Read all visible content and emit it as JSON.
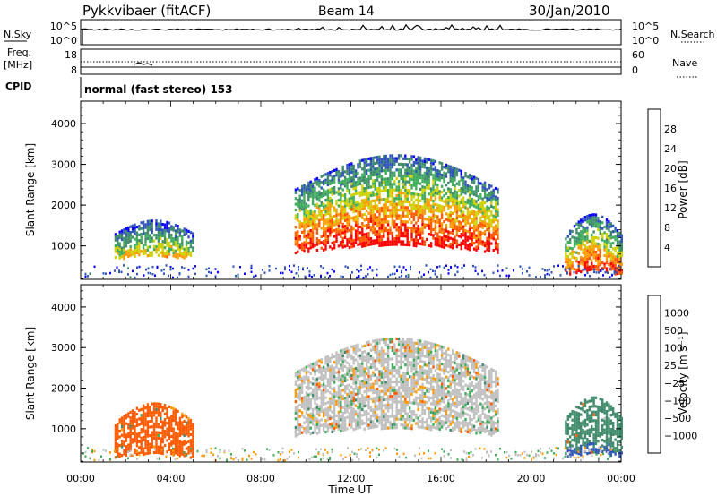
{
  "header": {
    "title": "Pykkvibaer (fitACF)",
    "beam": "Beam 14",
    "date": "30/Jan/2010"
  },
  "strips": {
    "nsky_label": "N.Sky",
    "nsearch_label": "N.Search",
    "nsky_ticks": [
      "10^5",
      "10^0"
    ],
    "nsearch_ticks": [
      "10^5",
      "10^0"
    ],
    "freq_label": "Freq.",
    "freq_unit": "[MHz]",
    "freq_ticks": [
      "18",
      "8"
    ],
    "nave_label": "Nave",
    "nave_ticks": [
      "60",
      "0"
    ],
    "cpid_label": "CPID",
    "cpid_text": "normal (fast stereo) 153"
  },
  "colors": {
    "power_scale": [
      "#0a00ff",
      "#2f55b7",
      "#3f8a6a",
      "#3fae5a",
      "#cfd000",
      "#ff9a00",
      "#ff5a00",
      "#ff0000"
    ],
    "velocity_scale": [
      "#ff0000",
      "#ff5a00",
      "#ff9a00",
      "#c0c0c0",
      "#c0c0c0",
      "#3fae5a",
      "#3f8a6a",
      "#2f55b7",
      "#1a2ad0"
    ]
  },
  "chart_data": [
    {
      "type": "heatmap",
      "name": "power_panel",
      "ylabel": "Slant Range [km]",
      "xlabel": "Time UT",
      "x_ticks": [
        "00:00",
        "04:00",
        "08:00",
        "12:00",
        "16:00",
        "20:00",
        "00:00"
      ],
      "x_range_hours": [
        0,
        24
      ],
      "y_ticks": [
        1000,
        2000,
        3000,
        4000
      ],
      "ylim_km": [
        180,
        4550
      ],
      "colorbar_title": "Power [dB]",
      "colorbar_ticks": [
        "28",
        "24",
        "20",
        "16",
        "12",
        "8",
        "4"
      ],
      "colorbar_range": [
        0,
        30
      ],
      "regions": [
        {
          "t_start_hr": 1.5,
          "t_end_hr": 5.0,
          "r_min_km": 700,
          "r_max_km": 1650,
          "peak_db": 20
        },
        {
          "t_start_hr": 9.5,
          "t_end_hr": 18.5,
          "r_min_km": 850,
          "r_max_km": 3250,
          "peak_db": 30
        },
        {
          "t_start_hr": 21.5,
          "t_end_hr": 24.0,
          "r_min_km": 300,
          "r_max_km": 1800,
          "peak_db": 28
        }
      ]
    },
    {
      "type": "heatmap",
      "name": "velocity_panel",
      "ylabel": "Slant Range [km]",
      "xlabel": "Time UT",
      "x_ticks": [
        "00:00",
        "04:00",
        "08:00",
        "12:00",
        "16:00",
        "20:00",
        "00:00"
      ],
      "x_range_hours": [
        0,
        24
      ],
      "y_ticks": [
        1000,
        2000,
        3000,
        4000
      ],
      "ylim_km": [
        180,
        4550
      ],
      "colorbar_title": "Velocity [m s⁻¹]",
      "colorbar_ticks": [
        "1000",
        "500",
        "100",
        "25",
        "−25",
        "−100",
        "−500",
        "−1000"
      ],
      "colorbar_range": [
        -1000,
        1000
      ],
      "regions": [
        {
          "t_start_hr": 1.5,
          "t_end_hr": 5.0,
          "r_min_km": 300,
          "r_max_km": 1650,
          "dominant_velocity": -300
        },
        {
          "t_start_hr": 9.5,
          "t_end_hr": 18.5,
          "r_min_km": 850,
          "r_max_km": 3250,
          "dominant_velocity": 0
        },
        {
          "t_start_hr": 21.5,
          "t_end_hr": 24.0,
          "r_min_km": 300,
          "r_max_km": 1800,
          "dominant_velocity": 400
        }
      ]
    }
  ]
}
